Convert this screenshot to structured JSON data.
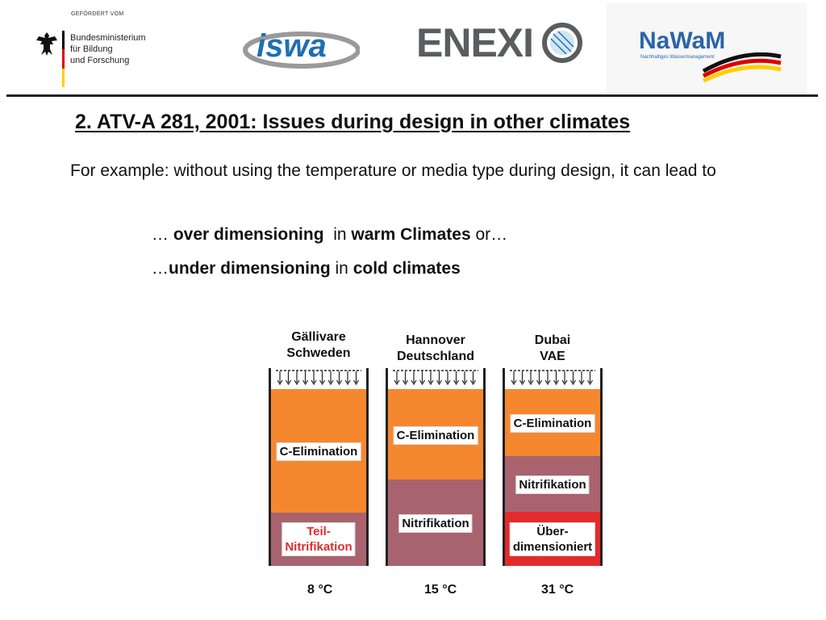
{
  "header": {
    "funded_by": "GEFÖRDERT VOM",
    "ministry_lines": [
      "Bundesministerium",
      "für Bildung",
      "und Forschung"
    ],
    "logo_isw": "iswa",
    "logo_enexio": "ENEXI",
    "logo_nawam": "NaWaM",
    "logo_nawam_sub": "Nachhaltiges Wassermanagement",
    "flag_colors": [
      "#000000",
      "#dd0000",
      "#ffce00"
    ]
  },
  "slide": {
    "title": "2. ATV-A 281, 2001: Issues during design in other climates",
    "paragraph": "For example: without using the temperature or media type during design, it can lead to",
    "bullet1": {
      "pre": "… ",
      "b1": "over dimensioning",
      "mid": "  in ",
      "b2": "warm Climates",
      "post": " or…"
    },
    "bullet2": {
      "pre": "…",
      "b1": "under dimensioning",
      "mid": " in ",
      "b2": "cold climates",
      "post": ""
    }
  },
  "diagram": {
    "colors": {
      "c_elimination": "#f5872f",
      "nitrification": "#a8636e",
      "over": "#e32b2b"
    },
    "reactors": [
      {
        "city_line1": "Gällivare",
        "city_line2": "Schweden",
        "temperature": "8 °C",
        "zones": [
          {
            "label": "C-Elimination",
            "type": "c_elimination",
            "fraction": 0.63
          },
          {
            "label": "Teil-\nNitrifikation",
            "label_color": "#e32b2b",
            "type": "nitrification",
            "fraction": 0.27
          }
        ]
      },
      {
        "city_line1": "Hannover",
        "city_line2": "Deutschland",
        "temperature": "15 °C",
        "zones": [
          {
            "label": "C-Elimination",
            "type": "c_elimination",
            "fraction": 0.46
          },
          {
            "label": "Nitrifikation",
            "type": "nitrification",
            "fraction": 0.44
          }
        ]
      },
      {
        "city_line1": "Dubai",
        "city_line2": "VAE",
        "temperature": "31 °C",
        "zones": [
          {
            "label": "C-Elimination",
            "type": "c_elimination",
            "fraction": 0.31
          },
          {
            "label": "Nitrifikation",
            "type": "nitrification",
            "fraction": 0.26
          },
          {
            "label": "Über-\ndimensioniert",
            "type": "over",
            "fraction": 0.25
          }
        ]
      }
    ]
  }
}
